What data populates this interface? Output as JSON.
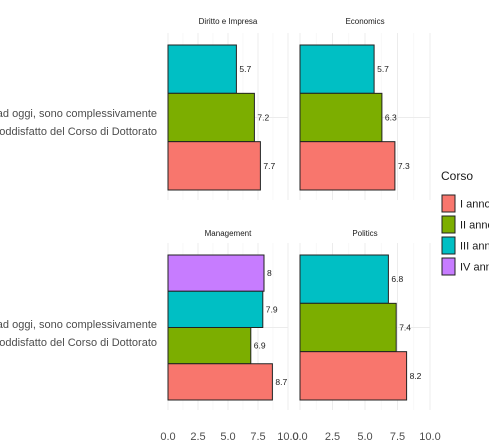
{
  "chart_data": {
    "type": "bar",
    "orientation": "horizontal",
    "category_label": [
      "Sino ad oggi, sono complessivamente",
      "soddisfatto del Corso di Dottorato"
    ],
    "x_ticks": [
      "0.0",
      "2.5",
      "5.0",
      "7.5",
      "10.0"
    ],
    "xlim": [
      0,
      10
    ],
    "grid": true,
    "legend": {
      "title": "Corso",
      "placement": "right",
      "items": [
        {
          "name": "I anno",
          "color": "#F8766D"
        },
        {
          "name": "II anno",
          "color": "#7CAE00"
        },
        {
          "name": "III anno",
          "color": "#00BFC4"
        },
        {
          "name": "IV anno",
          "color": "#C77CFF"
        }
      ]
    },
    "facets": [
      {
        "title": "Diritto e Impresa",
        "bars": [
          {
            "series": "III anno",
            "value": 5.7,
            "label": "5.7"
          },
          {
            "series": "II anno",
            "value": 7.2,
            "label": "7.2"
          },
          {
            "series": "I anno",
            "value": 7.7,
            "label": "7.7"
          }
        ]
      },
      {
        "title": "Economics",
        "bars": [
          {
            "series": "III anno",
            "value": 5.7,
            "label": "5.7"
          },
          {
            "series": "II anno",
            "value": 6.3,
            "label": "6.3"
          },
          {
            "series": "I anno",
            "value": 7.3,
            "label": "7.3"
          }
        ]
      },
      {
        "title": "Management",
        "bars": [
          {
            "series": "IV anno",
            "value": 8.0,
            "label": "8"
          },
          {
            "series": "III anno",
            "value": 7.9,
            "label": "7.9"
          },
          {
            "series": "II anno",
            "value": 6.9,
            "label": "6.9"
          },
          {
            "series": "I anno",
            "value": 8.7,
            "label": "8.7"
          }
        ]
      },
      {
        "title": "Politics",
        "bars": [
          {
            "series": "III anno",
            "value": 6.8,
            "label": "6.8"
          },
          {
            "series": "II anno",
            "value": 7.4,
            "label": "7.4"
          },
          {
            "series": "I anno",
            "value": 8.2,
            "label": "8.2"
          }
        ]
      }
    ]
  }
}
